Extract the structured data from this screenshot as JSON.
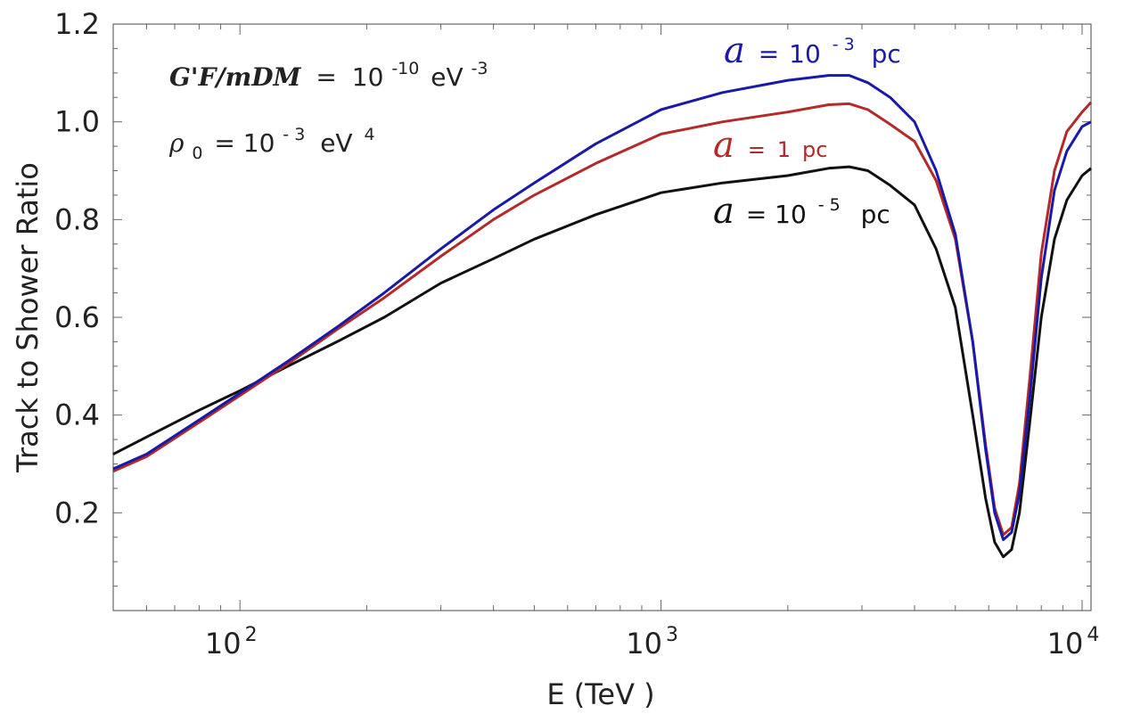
{
  "chart_data": {
    "type": "line",
    "title": "",
    "xlabel": "E (TeV )",
    "ylabel": "Track to Shower Ratio",
    "xscale": "log",
    "xlim": [
      50,
      10500
    ],
    "ylim": [
      0.0,
      1.2
    ],
    "grid": false,
    "yticks": [
      {
        "value": 0.2,
        "label": "0.2"
      },
      {
        "value": 0.4,
        "label": "0.4"
      },
      {
        "value": 0.6,
        "label": "0.6"
      },
      {
        "value": 0.8,
        "label": "0.8"
      },
      {
        "value": 1.0,
        "label": "1.0"
      },
      {
        "value": 1.2,
        "label": "1.2"
      }
    ],
    "xticks": [
      {
        "value": 100,
        "base": "10",
        "exp": "2"
      },
      {
        "value": 1000,
        "base": "10",
        "exp": "3"
      },
      {
        "value": 10000,
        "base": "10",
        "exp": "4"
      }
    ],
    "annotations": {
      "coupling": {
        "symbol": "G'F/mDM",
        "eq": "=",
        "base": "10",
        "exp": "-10",
        "unit": "eV",
        "unit_exp": "-3"
      },
      "density": {
        "symbol": "ρ",
        "sub": "0",
        "eq": "=",
        "base": "10",
        "exp": "- 3",
        "unit": "eV",
        "unit_exp": "4"
      }
    },
    "series": [
      {
        "name": "a = 10^-3 pc",
        "label": {
          "symbol": "a",
          "eq": "=",
          "base": "10",
          "exp": "- 3",
          "unit": "pc"
        },
        "color": "#1a1aa6",
        "x": [
          50,
          60,
          80,
          100,
          130,
          170,
          220,
          300,
          400,
          500,
          700,
          1000,
          1400,
          2000,
          2500,
          2800,
          3100,
          3500,
          4000,
          4500,
          5000,
          5500,
          5900,
          6200,
          6500,
          6800,
          7100,
          7500,
          8000,
          8600,
          9200,
          10000,
          10500
        ],
        "y": [
          0.29,
          0.32,
          0.39,
          0.445,
          0.51,
          0.58,
          0.65,
          0.74,
          0.82,
          0.875,
          0.955,
          1.025,
          1.06,
          1.085,
          1.095,
          1.095,
          1.08,
          1.05,
          1.0,
          0.9,
          0.77,
          0.55,
          0.33,
          0.2,
          0.145,
          0.16,
          0.24,
          0.43,
          0.68,
          0.86,
          0.94,
          0.99,
          1.0
        ]
      },
      {
        "name": "a = 1 pc",
        "label": {
          "symbol": "a",
          "eq": "=",
          "base": "1",
          "exp": "",
          "unit": "pc"
        },
        "color": "#b22a2a",
        "x": [
          50,
          60,
          80,
          100,
          130,
          170,
          220,
          300,
          400,
          500,
          700,
          1000,
          1400,
          2000,
          2500,
          2800,
          3100,
          3500,
          4000,
          4500,
          5000,
          5500,
          5900,
          6200,
          6500,
          6800,
          7100,
          7500,
          8000,
          8600,
          9200,
          10000,
          10500
        ],
        "y": [
          0.285,
          0.315,
          0.385,
          0.44,
          0.505,
          0.575,
          0.64,
          0.725,
          0.8,
          0.85,
          0.915,
          0.975,
          1.0,
          1.02,
          1.035,
          1.037,
          1.025,
          0.995,
          0.96,
          0.88,
          0.76,
          0.55,
          0.34,
          0.21,
          0.155,
          0.17,
          0.26,
          0.47,
          0.73,
          0.9,
          0.98,
          1.02,
          1.04
        ]
      },
      {
        "name": "a = 10^-5 pc",
        "label": {
          "symbol": "a",
          "eq": "=",
          "base": "10",
          "exp": "- 5",
          "unit": "pc"
        },
        "color": "#111111",
        "x": [
          50,
          60,
          80,
          100,
          130,
          170,
          220,
          300,
          400,
          500,
          700,
          1000,
          1400,
          2000,
          2500,
          2800,
          3100,
          3500,
          4000,
          4500,
          5000,
          5500,
          5900,
          6200,
          6500,
          6800,
          7100,
          7500,
          8000,
          8600,
          9200,
          10000,
          10500
        ],
        "y": [
          0.32,
          0.355,
          0.41,
          0.45,
          0.5,
          0.55,
          0.6,
          0.67,
          0.72,
          0.76,
          0.81,
          0.855,
          0.875,
          0.89,
          0.905,
          0.908,
          0.9,
          0.87,
          0.83,
          0.74,
          0.62,
          0.4,
          0.23,
          0.14,
          0.11,
          0.125,
          0.2,
          0.38,
          0.6,
          0.76,
          0.84,
          0.89,
          0.905
        ]
      }
    ]
  }
}
